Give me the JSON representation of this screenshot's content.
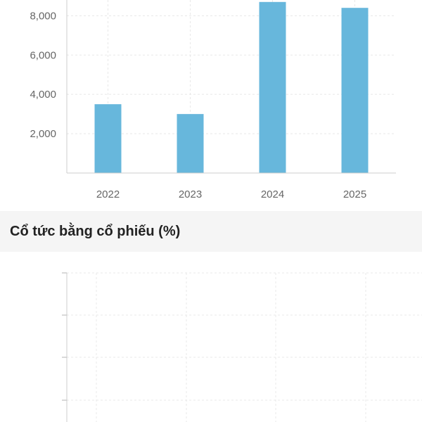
{
  "colors": {
    "bar": "#67b7dc",
    "axis": "#cccccc",
    "grid": "#e8e8e8",
    "section_bg": "#f5f5f5"
  },
  "chart_data": [
    {
      "type": "bar",
      "categories": [
        "2022",
        "2023",
        "2024",
        "2025"
      ],
      "values": [
        3500,
        3000,
        8700,
        8400
      ],
      "ylim": [
        0,
        8800
      ],
      "yticks": [
        2000,
        4000,
        6000,
        8000
      ],
      "ytick_labels": [
        "2,000",
        "4,000",
        "6,000",
        "8,000"
      ],
      "grid": true
    },
    {
      "type": "bar",
      "title": "Cổ tức bằng cổ phiếu (%)",
      "categories": [],
      "values": [],
      "grid": true
    }
  ]
}
